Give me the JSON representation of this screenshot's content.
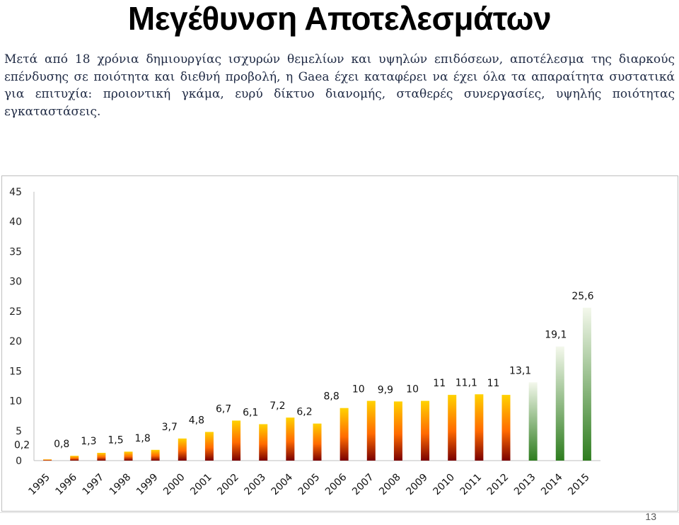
{
  "slide": {
    "title": "Μεγέθυνση Αποτελεσμάτων",
    "paragraph": "Μετά από 18 χρόνια δημιουργίας ισχυρών θεμελίων και υψηλών επιδόσεων, αποτέλεσμα της διαρκούς επένδυσης σε ποιότητα και διεθνή προβολή, η Gaea έχει καταφέρει να έχει όλα τα απαραίτητα συστατικά για επιτυχία: προιοντική γκάμα, ευρύ δίκτυο διανομής, σταθερές συνεργασίες, υψηλής ποιότητας εγκαταστάσεις.",
    "page_number": "13"
  },
  "chart_data": {
    "type": "bar",
    "categories": [
      "1995",
      "1996",
      "1997",
      "1998",
      "1999",
      "2000",
      "2001",
      "2002",
      "2003",
      "2004",
      "2005",
      "2006",
      "2007",
      "2008",
      "2009",
      "2010",
      "2011",
      "2012",
      "2013",
      "2014",
      "2015"
    ],
    "values": [
      0.2,
      0.8,
      1.3,
      1.5,
      1.8,
      3.7,
      4.8,
      6.7,
      6.1,
      7.2,
      6.2,
      8.8,
      10,
      9.9,
      10,
      11,
      11.1,
      11,
      13.1,
      19.1,
      25.6
    ],
    "data_labels": [
      "0,2",
      "0,8",
      "1,3",
      "1,5",
      "1,8",
      "3,7",
      "4,8",
      "6,7",
      "6,1",
      "7,2",
      "6,2",
      "8,8",
      "10",
      "9,9",
      "10",
      "11",
      "11,1",
      "11",
      "13,1",
      "19,1",
      "25,6"
    ],
    "yticks": [
      "0",
      "5",
      "10",
      "15",
      "20",
      "25",
      "30",
      "35",
      "40",
      "45"
    ],
    "ylim": [
      0,
      45
    ],
    "grid": false,
    "legend": "none",
    "colors": {
      "warm_top": "#ffd200",
      "warm_mid": "#ff6a00",
      "warm_bottom": "#7a0000",
      "green_top": "#f4f8ec",
      "green_bottom": "#2e7d1f"
    },
    "green_from_index": 18
  }
}
